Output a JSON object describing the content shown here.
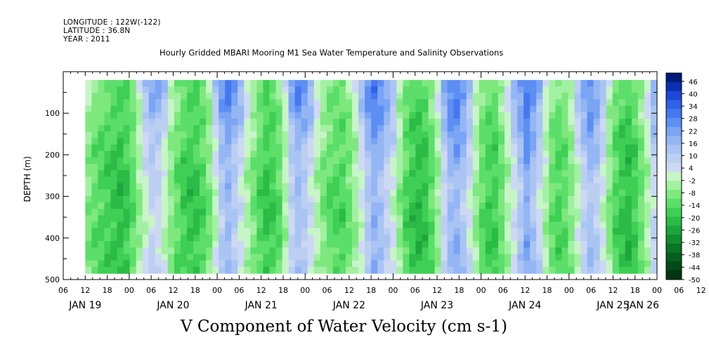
{
  "header": {
    "longitude": "LONGITUDE : 122W(-122)",
    "latitude": "LATITUDE : 36.8N",
    "year": "YEAR : 2011"
  },
  "chart_data": {
    "type": "heatmap",
    "title": "Hourly Gridded MBARI Mooring M1 Sea Water Temperature and Salinity Observations",
    "variable_label": "V Component of Water Velocity (cm s-1)",
    "ylabel": "DEPTH (m)",
    "y_axis": {
      "ticks": [
        100,
        200,
        300,
        400,
        500
      ],
      "range": [
        0,
        500
      ],
      "data_range": [
        20,
        485
      ],
      "inverted": true
    },
    "x_axis": {
      "hour_ticks": [
        "06",
        "12",
        "18",
        "00",
        "06",
        "12",
        "18",
        "00",
        "06",
        "12",
        "18",
        "00",
        "06",
        "12",
        "18",
        "00",
        "06",
        "12",
        "18",
        "00",
        "06",
        "12",
        "18",
        "00",
        "06",
        "12",
        "18",
        "00",
        "06",
        "12",
        "18",
        "00"
      ],
      "day_labels": [
        "JAN 19",
        "JAN 20",
        "JAN 21",
        "JAN 22",
        "JAN 23",
        "JAN 24",
        "JAN 25",
        "JAN 26"
      ],
      "start": "2011-01-19T06:00",
      "end": "2011-01-26T00:00",
      "data_start": "2011-01-19T12:00"
    },
    "colorbar": {
      "levels": [
        46,
        40,
        34,
        28,
        22,
        16,
        10,
        4,
        -2,
        -8,
        -14,
        -20,
        -26,
        -32,
        -38,
        -44,
        -50
      ],
      "min": -50,
      "max": 50,
      "step": 3,
      "colors": [
        "#001a7a",
        "#0a2fb0",
        "#1d48d6",
        "#3060e6",
        "#4777ef",
        "#5d8ef2",
        "#7aa4f4",
        "#95b6f4",
        "#aac4f4",
        "#bccff2",
        "#cdd9f3",
        "#c8f5c8",
        "#a3f0a3",
        "#7ee87e",
        "#5cde6a",
        "#3fcf55",
        "#2bbb46",
        "#1ea53b",
        "#138d30",
        "#0a7526",
        "#055f1e",
        "#024a16",
        "#013410"
      ]
    },
    "column_values": [
      -8,
      -12,
      -14,
      -16,
      -18,
      -20,
      -18,
      -12,
      -4,
      4,
      10,
      8,
      2,
      -6,
      -12,
      -16,
      -18,
      -18,
      -14,
      -8,
      2,
      14,
      18,
      12,
      6,
      -2,
      -8,
      -14,
      -18,
      -16,
      -12,
      -2,
      10,
      16,
      12,
      6,
      -2,
      -8,
      -12,
      -14,
      -14,
      -10,
      -4,
      4,
      14,
      20,
      16,
      10,
      4,
      -6,
      -14,
      -18,
      -20,
      -18,
      -12,
      -4,
      8,
      18,
      20,
      14,
      6,
      -4,
      -12,
      -16,
      -16,
      -10,
      -2,
      6,
      14,
      22,
      16,
      8,
      -2,
      -10,
      -14,
      -12,
      -6,
      2,
      10,
      16,
      12,
      4,
      -6,
      -14,
      -18,
      -20,
      -16,
      -10,
      -2,
      8
    ],
    "depth_modifiers": [
      {
        "depth": 20,
        "offset": 8
      },
      {
        "depth": 80,
        "offset": 6
      },
      {
        "depth": 150,
        "offset": 2
      },
      {
        "depth": 250,
        "offset": -2
      },
      {
        "depth": 350,
        "offset": -3
      },
      {
        "depth": 450,
        "offset": -1
      },
      {
        "depth": 485,
        "offset": 0
      }
    ]
  }
}
